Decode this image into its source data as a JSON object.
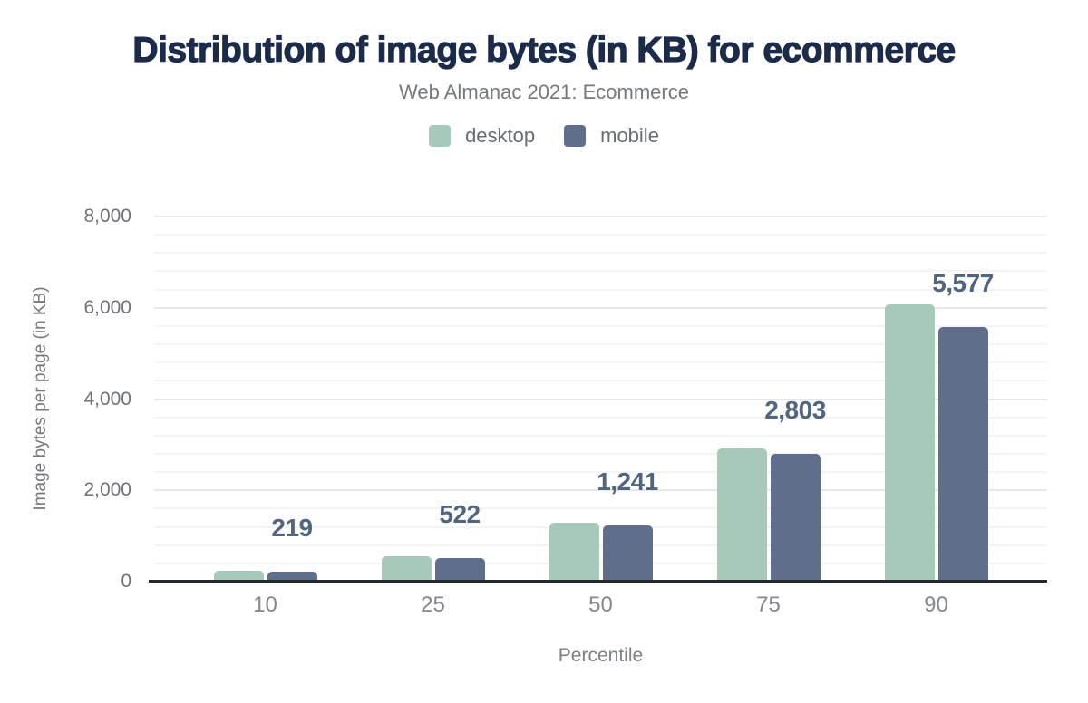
{
  "title": "Distribution of image bytes (in KB) for ecommerce",
  "subtitle": "Web Almanac 2021: Ecommerce",
  "legend": [
    {
      "label": "desktop",
      "color": "#a7c9b9"
    },
    {
      "label": "mobile",
      "color": "#5e6e8b"
    }
  ],
  "colors": {
    "title": "#1c2b49",
    "desktop_bar": "#a7c9b9",
    "mobile_bar": "#5e6e8b",
    "data_label": "#50657f",
    "grid_major": "#e7e8ea",
    "grid_minor": "#f4f4f6",
    "axis_line": "#24282c",
    "tick_text": "#6f7276"
  },
  "chart_data": {
    "type": "bar",
    "title": "Distribution of image bytes (in KB) for ecommerce",
    "subtitle": "Web Almanac 2021: Ecommerce",
    "categories": [
      "10",
      "25",
      "50",
      "75",
      "90"
    ],
    "series": [
      {
        "name": "desktop",
        "color": "#a7c9b9",
        "values": [
          240,
          560,
          1300,
          2920,
          6070
        ]
      },
      {
        "name": "mobile",
        "color": "#5e6e8b",
        "values": [
          219,
          522,
          1241,
          2803,
          5577
        ]
      }
    ],
    "data_labels": {
      "on_series": "mobile",
      "values": [
        "219",
        "522",
        "1,241",
        "2,803",
        "5,577"
      ]
    },
    "xlabel": "Percentile",
    "ylabel": "Image bytes per page (in KB)",
    "ylim": [
      0,
      8000
    ],
    "yticks": [
      0,
      2000,
      4000,
      6000,
      8000
    ],
    "ytick_labels": [
      "0",
      "2,000",
      "4,000",
      "6,000",
      "8,000"
    ],
    "minor_grid_step": 400,
    "grid": true,
    "legend_position": "top"
  }
}
